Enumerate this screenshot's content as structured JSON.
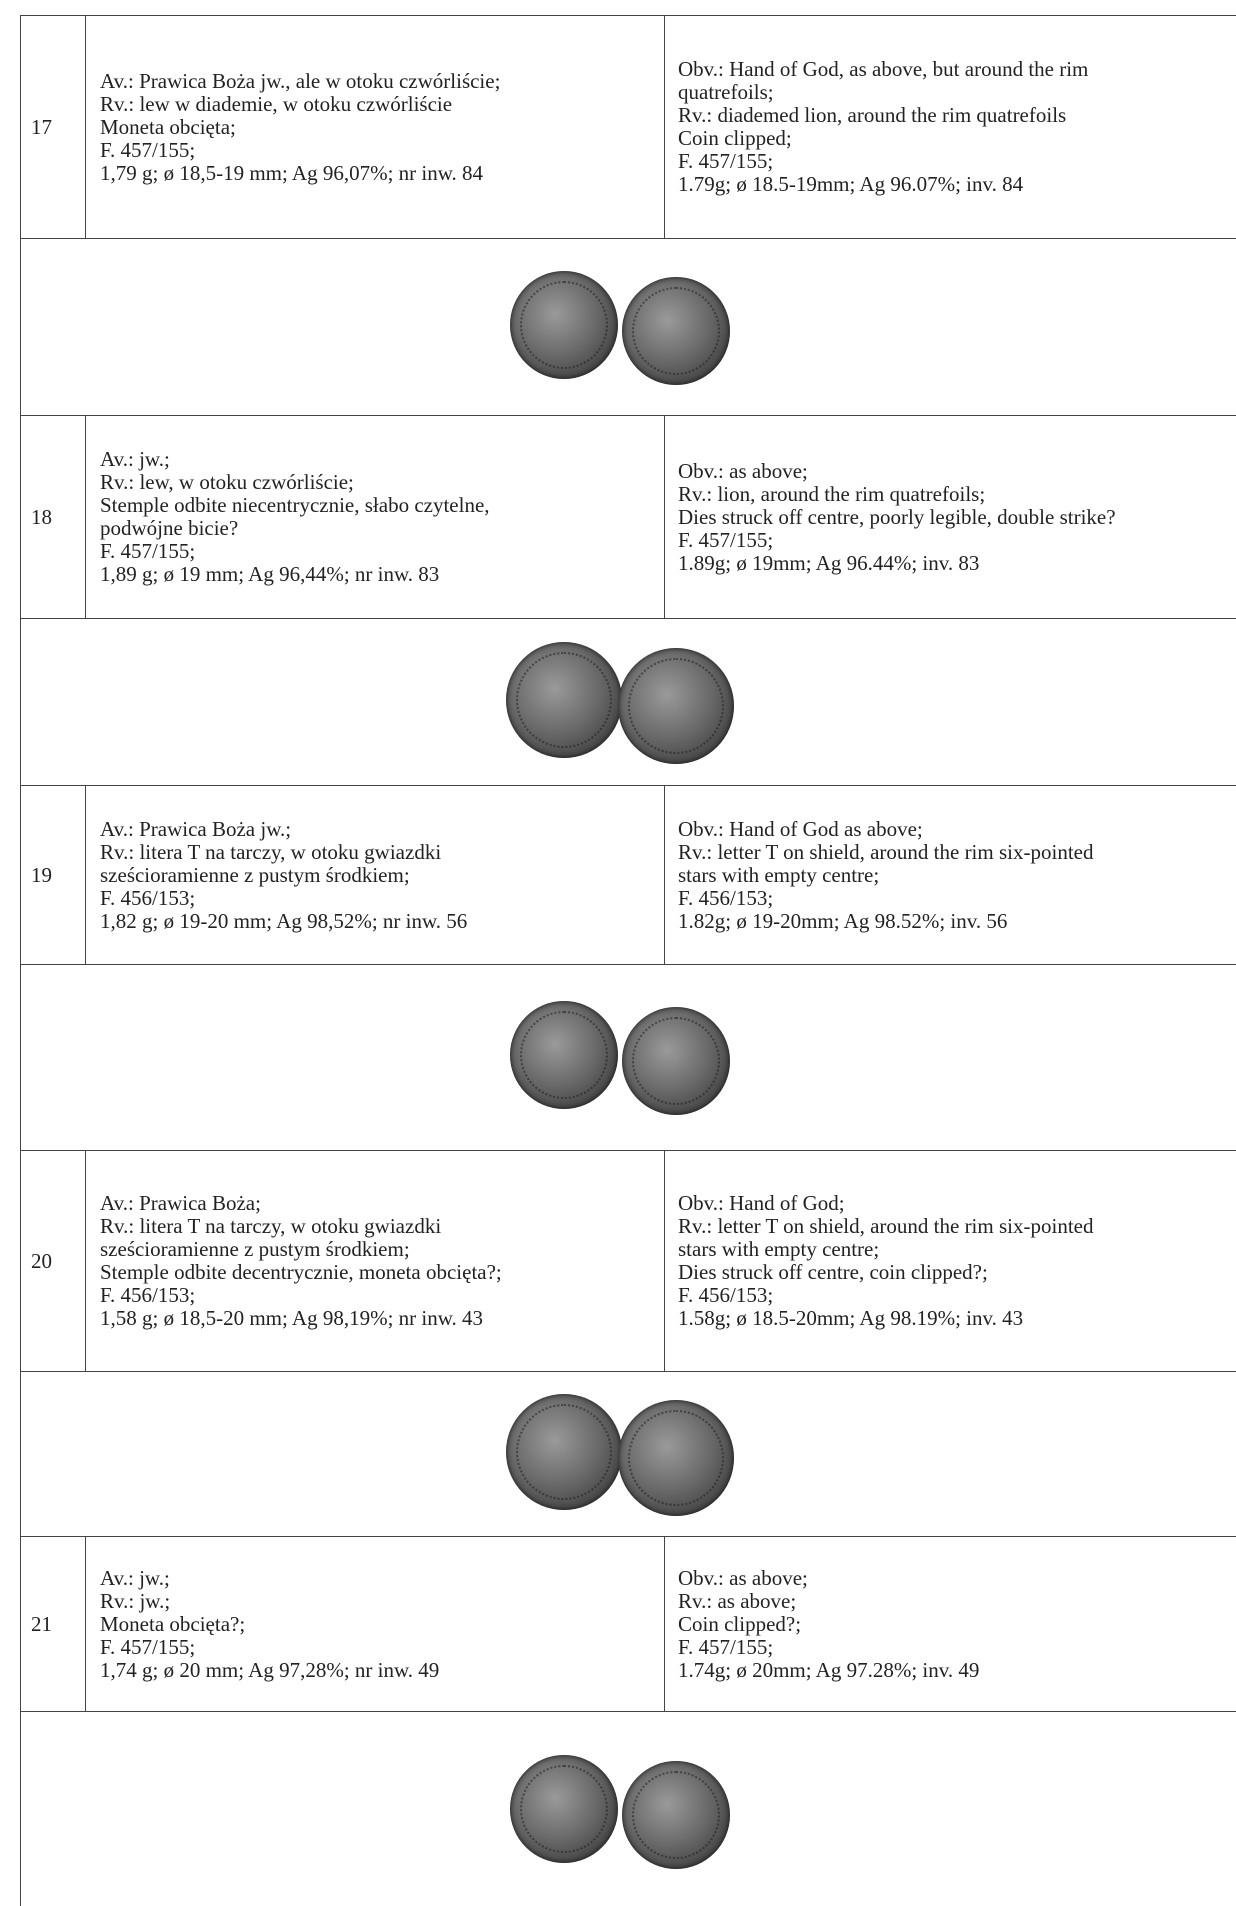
{
  "entries": [
    {
      "number": "17",
      "pl": [
        "Av.: Prawica Boża jw., ale w otoku czwórliście;",
        "Rv.: lew w diademie, w otoku czwórliście",
        "Moneta obcięta;",
        "F. 457/155;",
        "1,79 g; ø 18,5-19 mm; Ag 96,07%; nr inw. 84"
      ],
      "en": [
        "Obv.: Hand of God, as above, but around the rim",
        "quatrefoils;",
        "Rv.: diademed lion, around the rim quatrefoils",
        "Coin clipped;",
        "F. 457/155;",
        "1.79g; ø 18.5-19mm; Ag 96.07%; inv. 84"
      ]
    },
    {
      "number": "18",
      "pl": [
        "Av.: jw.;",
        "Rv.: lew, w otoku czwórliście;",
        "Stemple odbite niecentrycznie, słabo czytelne,",
        "podwójne bicie?",
        "F. 457/155;",
        "1,89 g; ø 19 mm; Ag 96,44%; nr inw. 83"
      ],
      "en": [
        "Obv.: as above;",
        "Rv.: lion, around the rim quatrefoils;",
        "Dies struck off centre, poorly legible, double strike?",
        "F. 457/155;",
        "1.89g; ø 19mm; Ag 96.44%; inv. 83"
      ]
    },
    {
      "number": "19",
      "pl": [
        "Av.: Prawica Boża jw.;",
        "Rv.: litera T na tarczy, w otoku gwiazdki",
        "sześcioramienne z pustym środkiem;",
        "F. 456/153;",
        "1,82 g; ø 19-20 mm; Ag 98,52%; nr inw. 56"
      ],
      "en": [
        "Obv.: Hand of God as above;",
        "Rv.: letter T on shield, around the rim six-pointed",
        "stars with empty centre;",
        "F. 456/153;",
        "1.82g; ø 19-20mm; Ag 98.52%; inv. 56"
      ]
    },
    {
      "number": "20",
      "pl": [
        "Av.: Prawica Boża;",
        "Rv.: litera T na tarczy, w otoku gwiazdki",
        "sześcioramienne z pustym środkiem;",
        "Stemple odbite decentrycznie, moneta obcięta?;",
        "F. 456/153;",
        "1,58 g; ø 18,5-20 mm; Ag 98,19%; nr inw. 43"
      ],
      "en": [
        "Obv.: Hand of God;",
        "Rv.: letter T on shield, around the rim six-pointed",
        "stars with empty centre;",
        "Dies struck off centre, coin clipped?;",
        "F. 456/153;",
        "1.58g; ø 18.5-20mm; Ag 98.19%; inv. 43"
      ]
    },
    {
      "number": "21",
      "pl": [
        "Av.: jw.;",
        "Rv.: jw.;",
        "Moneta obcięta?;",
        "F. 457/155;",
        "1,74 g; ø 20 mm; Ag 97,28%; nr inw. 49"
      ],
      "en": [
        "Obv.: as above;",
        "Rv.: as above;",
        "Coin clipped?;",
        "F. 457/155;",
        "1.74g; ø 20mm; Ag 97.28%; inv. 49"
      ]
    }
  ]
}
